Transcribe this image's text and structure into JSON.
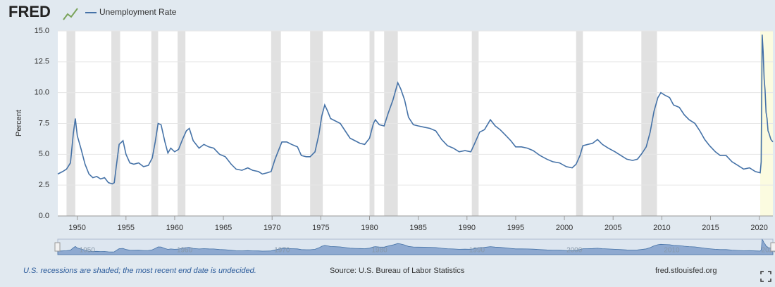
{
  "chart_data": {
    "type": "line",
    "logo": "FRED",
    "ylabel": "Percent",
    "footnote": "U.S. recessions are shaded; the most recent end date is undecided.",
    "source": "Source: U.S. Bureau of Labor Statistics",
    "site": "fred.stlouisfed.org",
    "xlim": [
      1948,
      2021.4
    ],
    "xticks": [
      1950,
      1955,
      1960,
      1965,
      1970,
      1975,
      1980,
      1985,
      1990,
      1995,
      2000,
      2005,
      2010,
      2015,
      2020
    ],
    "ylim": [
      0,
      15
    ],
    "yticks": [
      {
        "value": 0,
        "label": "0.0"
      },
      {
        "value": 2.5,
        "label": "2.5"
      },
      {
        "value": 5,
        "label": "5.0"
      },
      {
        "value": 7.5,
        "label": "7.5"
      },
      {
        "value": 10,
        "label": "10.0"
      },
      {
        "value": 12.5,
        "label": "12.5"
      },
      {
        "value": 15,
        "label": "15.0"
      }
    ],
    "grid": true,
    "recession_color": "#e1e1e1",
    "undecided_color": "#fbfbe0",
    "recessions": [
      [
        1948.9,
        1949.8
      ],
      [
        1953.5,
        1954.4
      ],
      [
        1957.6,
        1958.3
      ],
      [
        1960.3,
        1961.1
      ],
      [
        1969.9,
        1970.9
      ],
      [
        1973.9,
        1975.2
      ],
      [
        1980.0,
        1980.5
      ],
      [
        1981.5,
        1982.9
      ],
      [
        1990.5,
        1991.2
      ],
      [
        2001.2,
        2001.9
      ],
      [
        2007.9,
        2009.5
      ],
      [
        2020.1,
        null
      ]
    ],
    "navigator_ticks": [
      1950,
      1960,
      1970,
      1980,
      1990,
      2000,
      2010,
      2020
    ],
    "x": [
      1948.0,
      1948.5,
      1948.9,
      1949.3,
      1949.6,
      1949.8,
      1950.0,
      1950.4,
      1950.8,
      1951.2,
      1951.6,
      1952.0,
      1952.4,
      1952.8,
      1953.2,
      1953.6,
      1953.8,
      1954.0,
      1954.3,
      1954.7,
      1955.0,
      1955.4,
      1955.8,
      1956.3,
      1956.8,
      1957.3,
      1957.7,
      1958.0,
      1958.3,
      1958.6,
      1959.0,
      1959.3,
      1959.6,
      1960.0,
      1960.4,
      1960.8,
      1961.2,
      1961.5,
      1961.9,
      1962.5,
      1963.0,
      1963.5,
      1964.0,
      1964.6,
      1965.2,
      1965.8,
      1966.3,
      1966.9,
      1967.5,
      1968.0,
      1968.6,
      1969.0,
      1969.5,
      1969.9,
      1970.3,
      1970.7,
      1971.0,
      1971.5,
      1972.0,
      1972.6,
      1973.0,
      1973.5,
      1973.9,
      1974.4,
      1974.8,
      1975.1,
      1975.4,
      1975.7,
      1976.0,
      1976.5,
      1977.0,
      1977.5,
      1978.0,
      1978.5,
      1979.0,
      1979.5,
      1980.0,
      1980.4,
      1980.6,
      1981.0,
      1981.5,
      1981.9,
      1982.4,
      1982.9,
      1983.2,
      1983.6,
      1984.0,
      1984.5,
      1985.0,
      1985.6,
      1986.2,
      1986.8,
      1987.4,
      1988.0,
      1988.6,
      1989.2,
      1989.8,
      1990.4,
      1990.8,
      1991.3,
      1991.8,
      1992.4,
      1992.9,
      1993.4,
      1993.9,
      1994.5,
      1995.0,
      1995.6,
      1996.2,
      1996.8,
      1997.5,
      1998.2,
      1998.8,
      1999.5,
      2000.2,
      2000.8,
      2001.2,
      2001.6,
      2001.9,
      2002.4,
      2002.9,
      2003.4,
      2003.9,
      2004.5,
      2005.2,
      2005.8,
      2006.4,
      2007.0,
      2007.5,
      2007.9,
      2008.4,
      2008.8,
      2009.2,
      2009.6,
      2009.9,
      2010.3,
      2010.8,
      2011.2,
      2011.8,
      2012.3,
      2012.8,
      2013.4,
      2013.9,
      2014.4,
      2014.9,
      2015.5,
      2016.0,
      2016.6,
      2017.2,
      2017.8,
      2018.4,
      2019.0,
      2019.6,
      2020.1,
      2020.2,
      2020.3,
      2020.4,
      2020.5,
      2020.6,
      2020.7,
      2020.8,
      2020.9,
      2021.0,
      2021.2,
      2021.4
    ],
    "series": [
      {
        "name": "Unemployment Rate",
        "color": "#4572a7",
        "values": [
          3.4,
          3.6,
          3.8,
          4.3,
          6.7,
          7.9,
          6.5,
          5.4,
          4.2,
          3.4,
          3.1,
          3.2,
          3.0,
          3.1,
          2.7,
          2.6,
          2.7,
          4.0,
          5.8,
          6.1,
          5.0,
          4.3,
          4.2,
          4.3,
          4.0,
          4.1,
          4.7,
          6.0,
          7.5,
          7.4,
          6.0,
          5.1,
          5.5,
          5.2,
          5.4,
          6.2,
          6.9,
          7.1,
          6.1,
          5.5,
          5.8,
          5.6,
          5.5,
          5.0,
          4.8,
          4.2,
          3.8,
          3.7,
          3.9,
          3.7,
          3.6,
          3.4,
          3.5,
          3.6,
          4.6,
          5.4,
          6.0,
          6.0,
          5.8,
          5.6,
          4.9,
          4.8,
          4.8,
          5.2,
          6.6,
          8.1,
          9.0,
          8.5,
          7.9,
          7.7,
          7.5,
          6.9,
          6.3,
          6.1,
          5.9,
          5.8,
          6.3,
          7.5,
          7.8,
          7.4,
          7.3,
          8.3,
          9.4,
          10.8,
          10.3,
          9.4,
          8.0,
          7.4,
          7.3,
          7.2,
          7.1,
          6.9,
          6.2,
          5.7,
          5.5,
          5.2,
          5.3,
          5.2,
          5.9,
          6.8,
          7.0,
          7.8,
          7.3,
          7.0,
          6.6,
          6.1,
          5.6,
          5.6,
          5.5,
          5.3,
          4.9,
          4.6,
          4.4,
          4.3,
          4.0,
          3.9,
          4.2,
          4.9,
          5.7,
          5.8,
          5.9,
          6.2,
          5.8,
          5.5,
          5.2,
          4.9,
          4.6,
          4.5,
          4.6,
          5.0,
          5.6,
          6.8,
          8.5,
          9.6,
          10.0,
          9.8,
          9.6,
          9.0,
          8.8,
          8.2,
          7.8,
          7.5,
          6.9,
          6.2,
          5.7,
          5.2,
          4.9,
          4.9,
          4.4,
          4.1,
          3.8,
          3.9,
          3.6,
          3.5,
          4.4,
          14.7,
          13.3,
          11.1,
          10.2,
          8.4,
          7.9,
          6.9,
          6.7,
          6.2,
          6.0
        ]
      }
    ]
  }
}
